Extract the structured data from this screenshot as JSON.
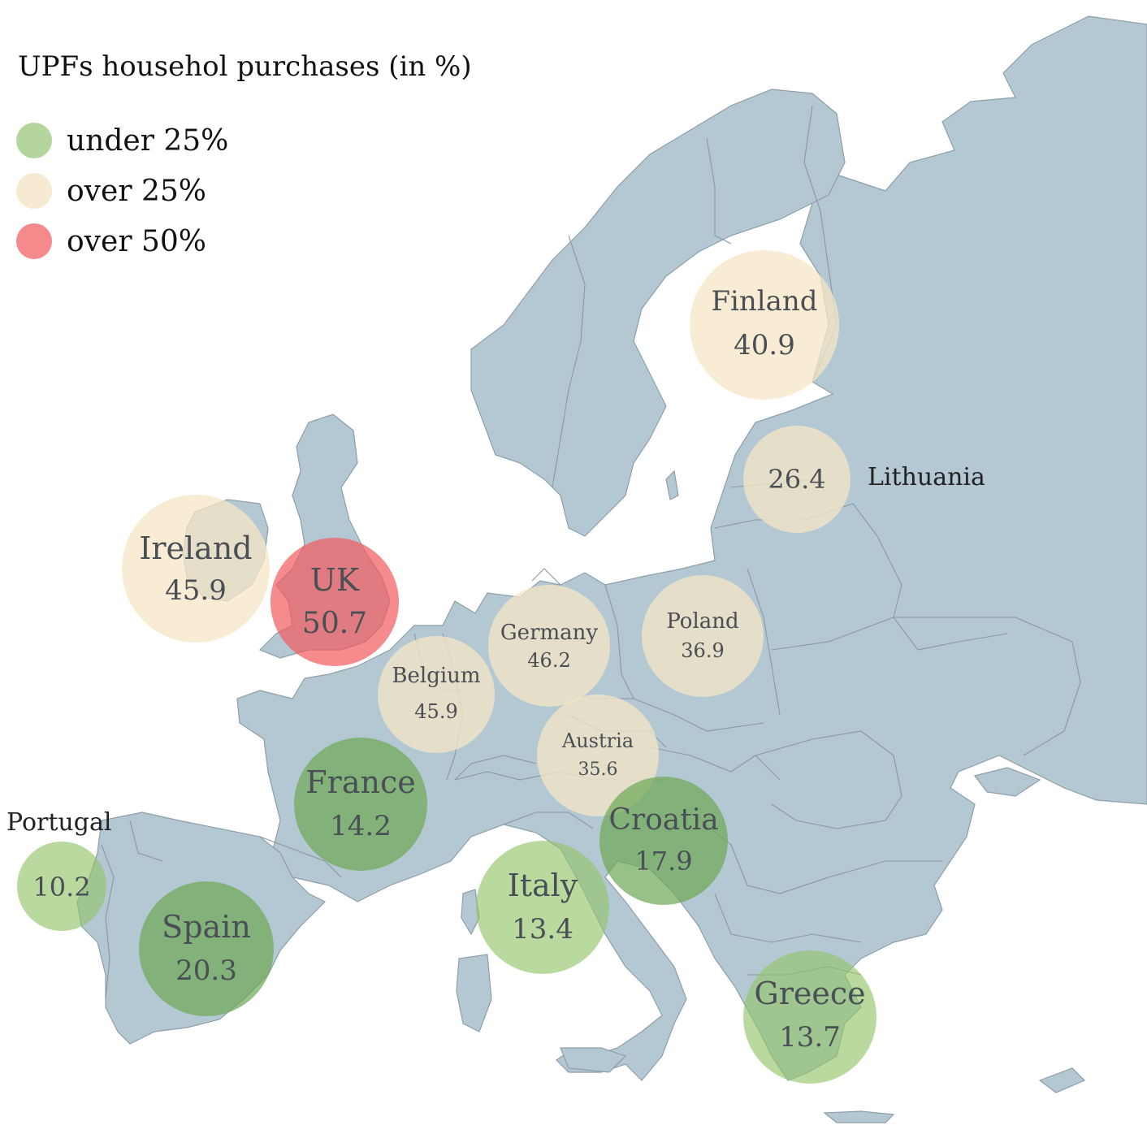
{
  "title": "UPFs househol purchases (in %)",
  "legend": [
    {
      "label": "under 25%",
      "color": "#9fcb7c"
    },
    {
      "label": "over 25%",
      "color": "#f5e8c8"
    },
    {
      "label": "over 50%",
      "color": "#f26266"
    }
  ],
  "countries": [
    {
      "name": "Finland",
      "value": "40.9",
      "category": "over 25%",
      "show_name_inside": true
    },
    {
      "name": "Lithuania",
      "value": "26.4",
      "category": "over 25%",
      "show_name_inside": false
    },
    {
      "name": "Ireland",
      "value": "45.9",
      "category": "over 25%",
      "show_name_inside": true
    },
    {
      "name": "UK",
      "value": "50.7",
      "category": "over 50%",
      "show_name_inside": true
    },
    {
      "name": "Germany",
      "value": "46.2",
      "category": "over 25%",
      "show_name_inside": true
    },
    {
      "name": "Poland",
      "value": "36.9",
      "category": "over 25%",
      "show_name_inside": true
    },
    {
      "name": "Belgium",
      "value": "45.9",
      "category": "over 25%",
      "show_name_inside": true
    },
    {
      "name": "Austria",
      "value": "35.6",
      "category": "over 25%",
      "show_name_inside": true
    },
    {
      "name": "France",
      "value": "14.2",
      "category": "under 25%",
      "show_name_inside": true
    },
    {
      "name": "Croatia",
      "value": "17.9",
      "category": "under 25%",
      "show_name_inside": true
    },
    {
      "name": "Portugal",
      "value": "10.2",
      "category": "under 25%",
      "show_name_inside": false
    },
    {
      "name": "Italy",
      "value": "13.4",
      "category": "under 25%",
      "show_name_inside": true
    },
    {
      "name": "Spain",
      "value": "20.3",
      "category": "under 25%",
      "show_name_inside": true
    },
    {
      "name": "Greece",
      "value": "13.7",
      "category": "under 25%",
      "show_name_inside": true
    }
  ],
  "colors": {
    "land": "#b4c8d4",
    "border": "#8a98a2",
    "under_25_fill": "#9fcb7c",
    "over_25_fill": "#f5e8c8",
    "over_50_fill": "#f26266"
  }
}
